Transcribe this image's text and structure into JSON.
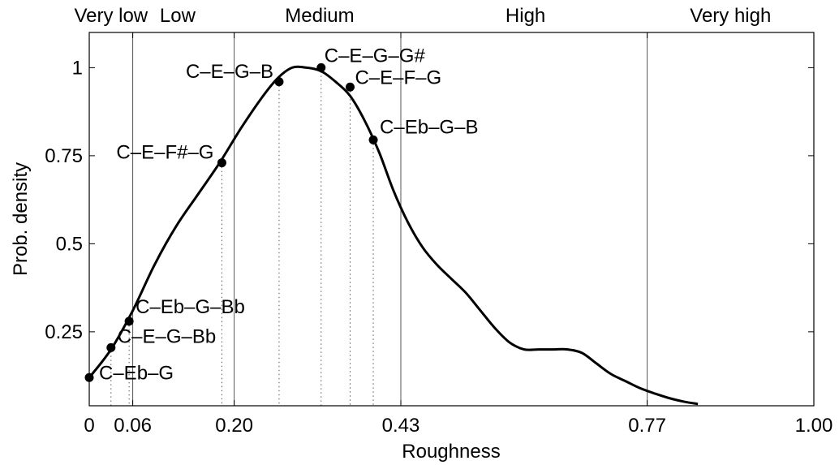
{
  "chart_data": {
    "type": "line",
    "title": "",
    "xlabel": "Roughness",
    "ylabel": "Prob. density",
    "xlim": [
      0,
      1
    ],
    "ylim": [
      0.04,
      1.1
    ],
    "grid": false,
    "xticks": [
      {
        "value": 0,
        "label": "0"
      },
      {
        "value": 0.06,
        "label": "0.06"
      },
      {
        "value": 0.2,
        "label": "0.20"
      },
      {
        "value": 0.43,
        "label": "0.43"
      },
      {
        "value": 0.77,
        "label": "0.77"
      },
      {
        "value": 1.0,
        "label": "1.00"
      }
    ],
    "yticks": [
      {
        "value": 0.25,
        "label": "0.25"
      },
      {
        "value": 0.5,
        "label": "0.5"
      },
      {
        "value": 0.75,
        "label": "0.75"
      },
      {
        "value": 1,
        "label": "1"
      }
    ],
    "boundaries": [
      0.06,
      0.2,
      0.43,
      0.77
    ],
    "regions": [
      {
        "label": "Very low",
        "x": 0.03
      },
      {
        "label": "Low",
        "x": 0.122
      },
      {
        "label": "Medium",
        "x": 0.318
      },
      {
        "label": "High",
        "x": 0.602
      },
      {
        "label": "Very high",
        "x": 0.885
      }
    ],
    "series": [
      {
        "x": [
          0,
          0.03,
          0.06,
          0.09,
          0.12,
          0.15,
          0.18,
          0.21,
          0.24,
          0.26,
          0.28,
          0.3,
          0.32,
          0.34,
          0.36,
          0.38,
          0.4,
          0.42,
          0.44,
          0.46,
          0.48,
          0.5,
          0.52,
          0.54,
          0.56,
          0.58,
          0.6,
          0.62,
          0.64,
          0.66,
          0.68,
          0.7,
          0.72,
          0.74,
          0.76,
          0.78,
          0.8,
          0.82,
          0.84
        ],
        "y": [
          0.12,
          0.2,
          0.31,
          0.44,
          0.55,
          0.64,
          0.73,
          0.83,
          0.92,
          0.97,
          1.0,
          1.0,
          0.99,
          0.96,
          0.92,
          0.85,
          0.76,
          0.65,
          0.56,
          0.49,
          0.44,
          0.4,
          0.36,
          0.31,
          0.26,
          0.22,
          0.2,
          0.2,
          0.2,
          0.2,
          0.19,
          0.16,
          0.13,
          0.11,
          0.09,
          0.075,
          0.062,
          0.052,
          0.045
        ]
      }
    ],
    "points": [
      {
        "label": "C–Eb–G",
        "x": 0.0,
        "y": 0.12
      },
      {
        "label": "C–E–G–Bb",
        "x": 0.03,
        "y": 0.205
      },
      {
        "label": "C–Eb–G–Bb",
        "x": 0.055,
        "y": 0.28
      },
      {
        "label": "C–E–F#–G",
        "x": 0.183,
        "y": 0.73
      },
      {
        "label": "C–E–G–B",
        "x": 0.262,
        "y": 0.96
      },
      {
        "label": "C–E–G–G#",
        "x": 0.32,
        "y": 1.0
      },
      {
        "label": "C–E–F–G",
        "x": 0.36,
        "y": 0.945
      },
      {
        "label": "C–Eb–G–B",
        "x": 0.392,
        "y": 0.795
      }
    ]
  }
}
